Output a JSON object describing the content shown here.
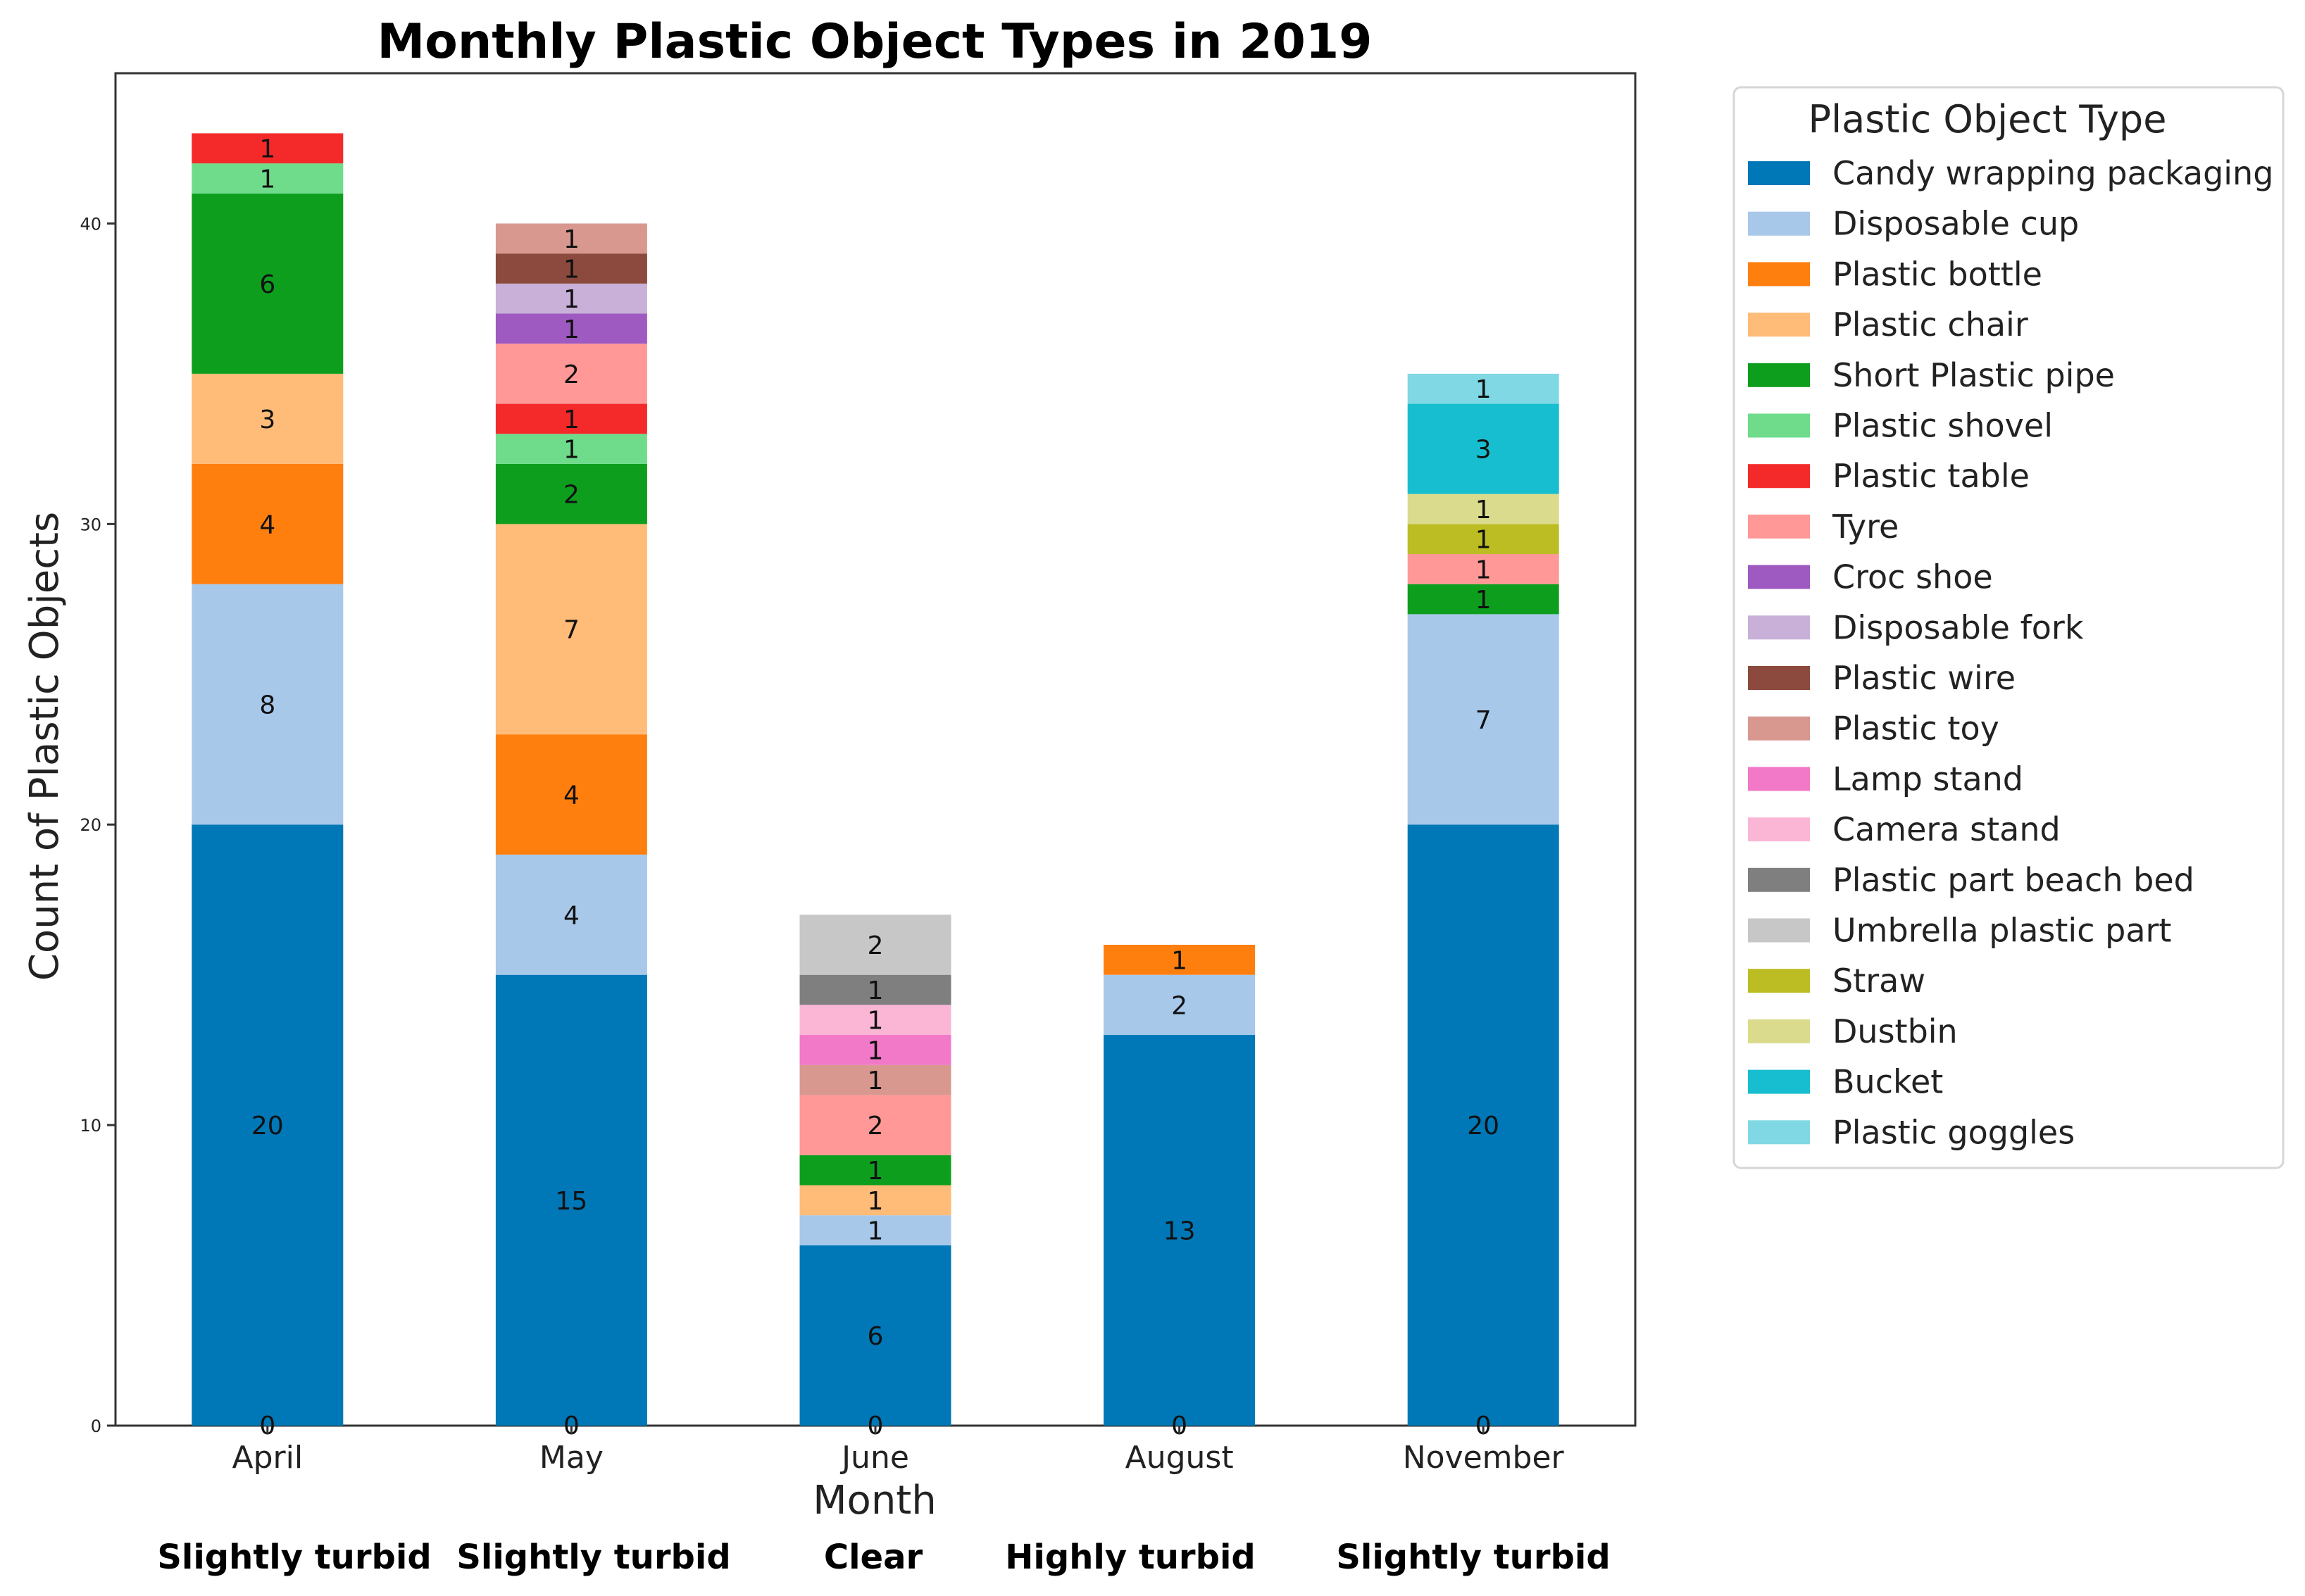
{
  "chart_data": {
    "type": "bar",
    "stacked": true,
    "title": "Monthly Plastic Object Types in 2019",
    "xlabel": "Month",
    "ylabel": "Count of Plastic Objects",
    "ylim": [
      0,
      45
    ],
    "yticks": [
      0,
      10,
      20,
      30,
      40
    ],
    "grid": false,
    "legend_position": "outside-top-right",
    "categories": [
      "April",
      "May",
      "June",
      "August",
      "November"
    ],
    "turbidity": [
      "Slightly turbid",
      "Slightly turbid",
      "Clear",
      "Highly turbid",
      "Slightly turbid"
    ],
    "legend_title": "Plastic Object Type",
    "series": [
      {
        "name": "Candy wrapping packaging",
        "color": "#0077b6",
        "values": [
          20,
          15,
          6,
          13,
          20
        ]
      },
      {
        "name": "Disposable cup",
        "color": "#a8c8ea",
        "values": [
          8,
          4,
          1,
          2,
          7
        ]
      },
      {
        "name": "Plastic bottle",
        "color": "#ff7f0e",
        "values": [
          4,
          4,
          0,
          1,
          0
        ]
      },
      {
        "name": "Plastic chair",
        "color": "#ffbb78",
        "values": [
          3,
          7,
          1,
          0,
          0
        ]
      },
      {
        "name": "Short Plastic pipe",
        "color": "#0e9e1e",
        "values": [
          6,
          2,
          1,
          0,
          1
        ]
      },
      {
        "name": "Plastic shovel",
        "color": "#6fdc8c",
        "values": [
          1,
          1,
          0,
          0,
          0
        ]
      },
      {
        "name": "Plastic table",
        "color": "#f42a2a",
        "values": [
          1,
          1,
          0,
          0,
          0
        ]
      },
      {
        "name": "Tyre",
        "color": "#ff9896",
        "values": [
          0,
          2,
          2,
          0,
          1
        ]
      },
      {
        "name": "Croc shoe",
        "color": "#9f5ac2",
        "values": [
          0,
          1,
          0,
          0,
          0
        ]
      },
      {
        "name": "Disposable fork",
        "color": "#c8b0d8",
        "values": [
          0,
          1,
          0,
          0,
          0
        ]
      },
      {
        "name": "Plastic wire",
        "color": "#8c4a3e",
        "values": [
          0,
          1,
          0,
          0,
          0
        ]
      },
      {
        "name": "Plastic toy",
        "color": "#d89890",
        "values": [
          0,
          1,
          1,
          0,
          0
        ]
      },
      {
        "name": "Lamp stand",
        "color": "#f278c8",
        "values": [
          0,
          0,
          1,
          0,
          0
        ]
      },
      {
        "name": "Camera stand",
        "color": "#fbb6d6",
        "values": [
          0,
          0,
          1,
          0,
          0
        ]
      },
      {
        "name": "Plastic part beach bed",
        "color": "#7f7f7f",
        "values": [
          0,
          0,
          1,
          0,
          0
        ]
      },
      {
        "name": "Umbrella plastic part",
        "color": "#c7c7c7",
        "values": [
          0,
          0,
          2,
          0,
          0
        ]
      },
      {
        "name": "Straw",
        "color": "#bcbd22",
        "values": [
          0,
          0,
          0,
          0,
          1
        ]
      },
      {
        "name": "Dustbin",
        "color": "#dbdb8d",
        "values": [
          0,
          0,
          0,
          0,
          1
        ]
      },
      {
        "name": "Bucket",
        "color": "#17becf",
        "values": [
          0,
          0,
          0,
          0,
          3
        ]
      },
      {
        "name": "Plastic goggles",
        "color": "#7fd8e3",
        "values": [
          0,
          0,
          0,
          0,
          1
        ]
      }
    ],
    "annotations": {
      "bottom_zero_labels": [
        "0",
        "0",
        "0",
        "0",
        "0"
      ]
    }
  }
}
